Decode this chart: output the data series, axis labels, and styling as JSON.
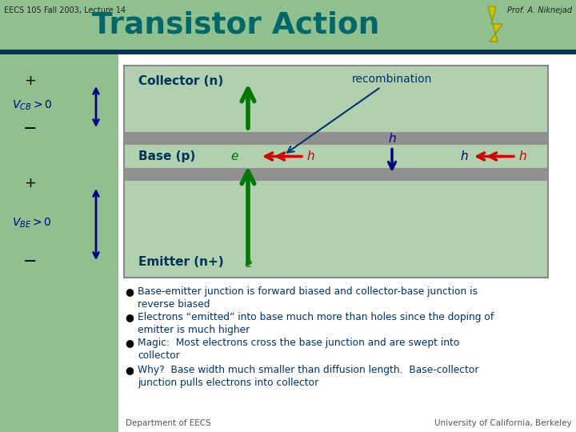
{
  "bg_color": "#ffffff",
  "header_green": "#90c090",
  "title": "Transistor Action",
  "title_color": "#006666",
  "slide_bg": "#c8dfc8",
  "base_gray": "#909090",
  "collector_label": "Collector (n)",
  "base_label": "Base (p)",
  "emitter_label": "Emitter (n+)",
  "recombination_label": "recombination",
  "bullet1": "Base-emitter junction is forward biased and collector-base junction is\nreverse biased",
  "bullet2": "Electrons “emitted” into base much more than holes since the doping of\nemitter is much higher",
  "bullet3": "Magic:  Most electrons cross the base junction and are swept into\ncollector",
  "bullet4": "Why?  Base width much smaller than diffusion length.  Base-collector\njunction pulls electrons into collector",
  "dept_label": "Department of EECS",
  "univ_label": "University of California, Berkeley",
  "course_label": "EECS 105 Fall 2003, Lecture 14",
  "prof_label": "Prof. A. Niknejad",
  "green_arrow_color": "#007700",
  "red_arrow_color": "#cc0000",
  "blue_dark": "#000080",
  "dark_teal": "#003366",
  "navy": "#000080",
  "teal_bar": "#003355",
  "left_sidebar_color": "#90c090",
  "diag_green": "#b0d0b0",
  "junction_gray": "#909090"
}
